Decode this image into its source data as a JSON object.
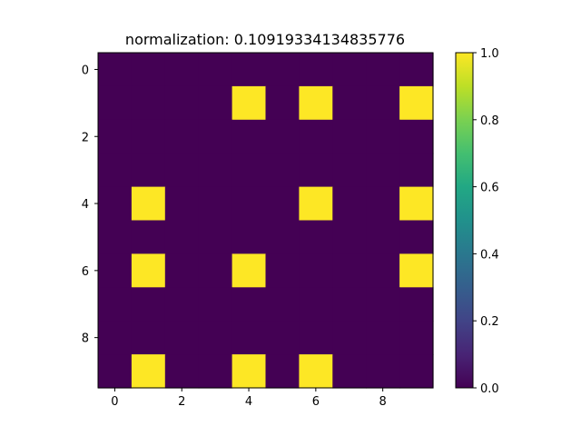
{
  "chart_data": {
    "type": "heatmap",
    "title": "normalization:  0.10919334134835776",
    "xlabel": "",
    "ylabel": "",
    "rows": 10,
    "cols": 10,
    "values": [
      [
        0,
        0,
        0,
        0,
        0,
        0,
        0,
        0,
        0,
        0
      ],
      [
        0,
        0,
        0,
        0,
        1,
        0,
        1,
        0,
        0,
        1
      ],
      [
        0,
        0,
        0,
        0,
        0,
        0,
        0,
        0,
        0,
        0
      ],
      [
        0,
        0,
        0,
        0,
        0,
        0,
        0,
        0,
        0,
        0
      ],
      [
        0,
        1,
        0,
        0,
        0,
        0,
        1,
        0,
        0,
        1
      ],
      [
        0,
        0,
        0,
        0,
        0,
        0,
        0,
        0,
        0,
        0
      ],
      [
        0,
        1,
        0,
        0,
        1,
        0,
        0,
        0,
        0,
        1
      ],
      [
        0,
        0,
        0,
        0,
        0,
        0,
        0,
        0,
        0,
        0
      ],
      [
        0,
        0,
        0,
        0,
        0,
        0,
        0,
        0,
        0,
        0
      ],
      [
        0,
        1,
        0,
        0,
        1,
        0,
        1,
        0,
        0,
        0
      ]
    ],
    "x_ticks": [
      0,
      2,
      4,
      6,
      8
    ],
    "y_ticks": [
      0,
      2,
      4,
      6,
      8
    ],
    "vlim": [
      0.0,
      1.0
    ],
    "colormap": "viridis",
    "colorbar_ticks": [
      "0.0",
      "0.2",
      "0.4",
      "0.6",
      "0.8",
      "1.0"
    ],
    "colors": {
      "low": "#440154",
      "high": "#fde725"
    },
    "grid": false
  }
}
